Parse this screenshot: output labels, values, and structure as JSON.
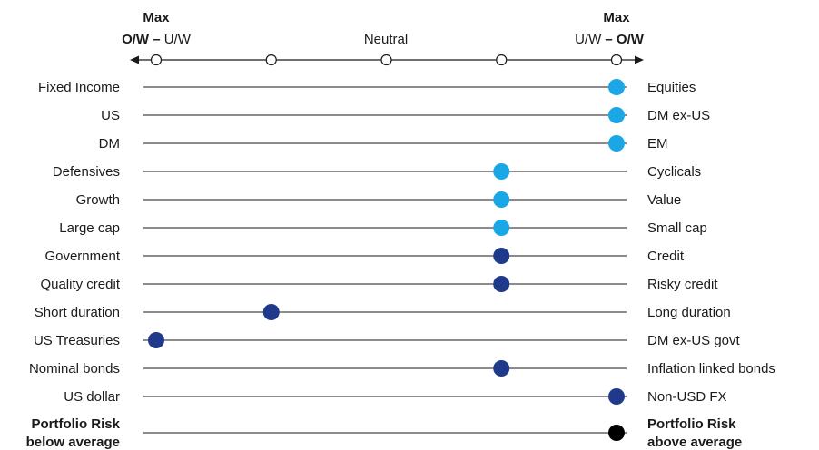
{
  "chart_data": {
    "type": "scatter",
    "header": {
      "left_top": "Max",
      "left_bold": "O/W",
      "left_sep": " – ",
      "left_rest": "U/W",
      "center": "Neutral",
      "right_top": "Max",
      "right_rest": "U/W",
      "right_sep": " – ",
      "right_bold": "O/W"
    },
    "scale": {
      "min": -2,
      "max": 2,
      "ticks": [
        -2,
        -1,
        0,
        1,
        2
      ]
    },
    "rows": [
      {
        "left": "Fixed Income",
        "right": "Equities",
        "value": 2,
        "color": "#1aa7e5"
      },
      {
        "left": "US",
        "right": "DM ex-US",
        "value": 2,
        "color": "#1aa7e5"
      },
      {
        "left": "DM",
        "right": "EM",
        "value": 2,
        "color": "#1aa7e5"
      },
      {
        "left": "Defensives",
        "right": "Cyclicals",
        "value": 1,
        "color": "#1aa7e5"
      },
      {
        "left": "Growth",
        "right": "Value",
        "value": 1,
        "color": "#1aa7e5"
      },
      {
        "left": "Large cap",
        "right": "Small cap",
        "value": 1,
        "color": "#1aa7e5"
      },
      {
        "left": "Government",
        "right": "Credit",
        "value": 1,
        "color": "#1f3a8a"
      },
      {
        "left": "Quality credit",
        "right": "Risky credit",
        "value": 1,
        "color": "#1f3a8a"
      },
      {
        "left": "Short duration",
        "right": "Long duration",
        "value": -1,
        "color": "#1f3a8a"
      },
      {
        "left": "US Treasuries",
        "right": "DM ex-US govt",
        "value": -2,
        "color": "#1f3a8a"
      },
      {
        "left": "Nominal bonds",
        "right": "Inflation linked bonds",
        "value": 1,
        "color": "#1f3a8a"
      },
      {
        "left": "US dollar",
        "right": "Non-USD FX",
        "value": 2,
        "color": "#1f3a8a"
      }
    ],
    "portfolio_risk": {
      "left_line1": "Portfolio Risk",
      "left_line2": "below average",
      "right_line1": "Portfolio Risk",
      "right_line2": "above average",
      "value": 2,
      "color": "#000000"
    }
  }
}
